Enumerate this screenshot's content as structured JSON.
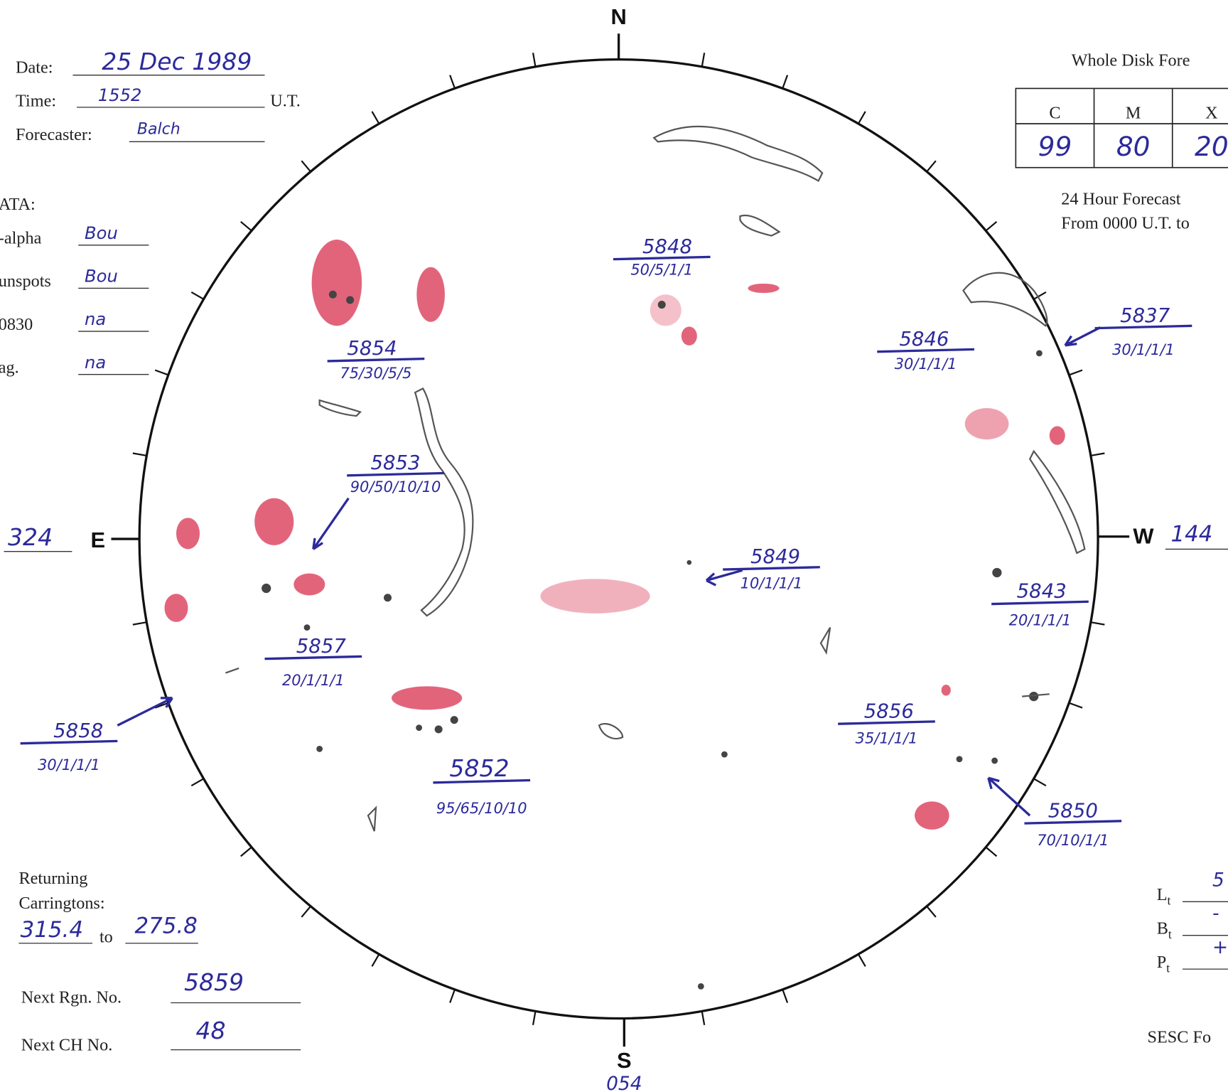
{
  "header": {
    "date_label": "Date:",
    "date": "25 Dec 1989",
    "time_label": "Time:",
    "time": "1552",
    "time_unit": "U.T.",
    "forecaster_label": "Forecaster:",
    "forecaster": "Balch"
  },
  "data_section": {
    "title": "ATA:",
    "rows": [
      {
        "label": "-alpha",
        "value": "Bou"
      },
      {
        "label": "unspots",
        "value": "Bou"
      },
      {
        "label": "0830",
        "value": "na"
      },
      {
        "label": "ag.",
        "value": "na"
      }
    ]
  },
  "compass": {
    "north": "N",
    "south": "S",
    "east": "E",
    "west": "W",
    "east_value": "324",
    "west_value": "144",
    "south_value": "054"
  },
  "forecast": {
    "title": "Whole Disk Fore",
    "headers": [
      "C",
      "M",
      "X"
    ],
    "values": [
      "99",
      "80",
      "20"
    ],
    "line1": "24 Hour Forecast",
    "line2": "From 0000 U.T. to"
  },
  "regions": [
    {
      "number": "5848",
      "classification": "50/5/1/1"
    },
    {
      "number": "5854",
      "classification": "75/30/5/5"
    },
    {
      "number": "5853",
      "classification": "90/50/10/10"
    },
    {
      "number": "5846",
      "classification": "30/1/1/1"
    },
    {
      "number": "5837",
      "classification": "30/1/1/1"
    },
    {
      "number": "5849",
      "classification": "10/1/1/1"
    },
    {
      "number": "5843",
      "classification": "20/1/1/1"
    },
    {
      "number": "5857",
      "classification": "20/1/1/1"
    },
    {
      "number": "5858",
      "classification": "30/1/1/1"
    },
    {
      "number": "5856",
      "classification": "35/1/1/1"
    },
    {
      "number": "5852",
      "classification": "95/65/10/10"
    },
    {
      "number": "5850",
      "classification": "70/10/1/1"
    }
  ],
  "returning": {
    "line1": "Returning",
    "line2": "Carringtons:",
    "from": "315.4",
    "to_label": "to",
    "to": "275.8"
  },
  "next_region": {
    "label": "Next Rgn. No.",
    "value": "5859"
  },
  "next_ch": {
    "label": "Next CH No.",
    "value": "48"
  },
  "orientation": {
    "rows": [
      {
        "label": "L",
        "sub": "t",
        "value": "5"
      },
      {
        "label": "B",
        "sub": "t",
        "value": "-"
      },
      {
        "label": "P",
        "sub": "t",
        "value": "+"
      }
    ]
  },
  "footer": {
    "text": "SESC Fo"
  }
}
